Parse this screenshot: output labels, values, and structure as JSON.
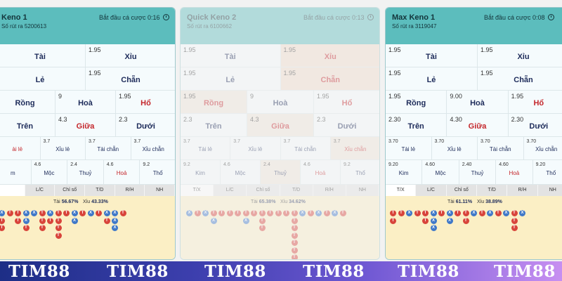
{
  "panels": [
    {
      "name": "Keno 1",
      "draw": "Số rút ra 5200613",
      "countdown": "Bắt đầu cá cược 0:16",
      "rows": [
        [
          {
            "odds": "",
            "label": "Tài"
          },
          {
            "odds": "1.95",
            "label": "Xỉu"
          }
        ],
        [
          {
            "odds": "",
            "label": "Lẻ"
          },
          {
            "odds": "1.95",
            "label": "Chẵn"
          }
        ],
        [
          {
            "odds": "",
            "label": "Rồng"
          },
          {
            "odds": "9",
            "label": "Hoà"
          },
          {
            "odds": "1.95",
            "label": "Hổ"
          }
        ],
        [
          {
            "odds": "",
            "label": "Trên"
          },
          {
            "odds": "4.3",
            "label": "Giữa"
          },
          {
            "odds": "2.3",
            "label": "Dưới"
          }
        ],
        [
          {
            "odds": "",
            "label": "ài lẻ"
          },
          {
            "odds": "3.7",
            "label": "Xỉu lẻ"
          },
          {
            "odds": "3.7",
            "label": "Tài chẵn"
          },
          {
            "odds": "3.7",
            "label": "Xỉu chẵn"
          }
        ],
        [
          {
            "odds": "",
            "label": "m"
          },
          {
            "odds": "4.6",
            "label": "Mộc"
          },
          {
            "odds": "2.4",
            "label": "Thuỷ"
          },
          {
            "odds": "4.6",
            "label": "Hoả"
          },
          {
            "odds": "9.2",
            "label": "Thổ"
          }
        ]
      ],
      "tabs": [
        "",
        "L/C",
        "Chỉ số",
        "T/D",
        "R/H",
        "NH"
      ],
      "tai_label": "Tài",
      "tai_pct": "56.67%",
      "xiu_label": "Xỉu",
      "xiu_pct": "43.33%",
      "beads": [
        [
          "X",
          "T",
          "T"
        ],
        [
          "T"
        ],
        [
          "T",
          "T"
        ],
        [
          "X",
          "X",
          "T"
        ],
        [
          "X"
        ],
        [
          "T",
          "T",
          "T"
        ],
        [
          "X",
          "T"
        ],
        [
          "T",
          "T",
          "T",
          "T"
        ],
        [
          "T"
        ],
        [
          "X",
          "X"
        ],
        [
          "T"
        ],
        [
          "X"
        ],
        [
          "T"
        ],
        [
          "X",
          "T"
        ],
        [
          "X",
          "X",
          "X"
        ],
        [
          "T"
        ]
      ]
    },
    {
      "name": "Quick Keno 2",
      "draw": "Số rút ra 6100662",
      "countdown": "Bắt đầu cá cược 0:13",
      "rows": [
        [
          {
            "odds": "1.95",
            "label": "Tài"
          },
          {
            "odds": "1.95",
            "label": "Xỉu"
          }
        ],
        [
          {
            "odds": "1.95",
            "label": "Lẻ"
          },
          {
            "odds": "1.95",
            "label": "Chẵn"
          }
        ],
        [
          {
            "odds": "1.95",
            "label": "Rồng"
          },
          {
            "odds": "9",
            "label": "Hoà"
          },
          {
            "odds": "1.95",
            "label": "Hổ"
          }
        ],
        [
          {
            "odds": "2.3",
            "label": "Trên"
          },
          {
            "odds": "4.3",
            "label": "Giữa"
          },
          {
            "odds": "2.3",
            "label": "Dưới"
          }
        ],
        [
          {
            "odds": "3.7",
            "label": "Tài lẻ"
          },
          {
            "odds": "3.7",
            "label": "Xỉu lẻ"
          },
          {
            "odds": "3.7",
            "label": "Tài chẵn"
          },
          {
            "odds": "3.7",
            "label": "Xỉu chẵn"
          }
        ],
        [
          {
            "odds": "9.2",
            "label": "Kim"
          },
          {
            "odds": "4.6",
            "label": "Mộc"
          },
          {
            "odds": "2.4",
            "label": "Thuỷ"
          },
          {
            "odds": "4.6",
            "label": "Hoả"
          },
          {
            "odds": "9.2",
            "label": "Thổ"
          }
        ]
      ],
      "tabs": [
        "T/X",
        "L/C",
        "Chỉ số",
        "T/D",
        "R/H",
        "NH"
      ],
      "tai_label": "Tài",
      "tai_pct": "65.38%",
      "xiu_label": "Xỉu",
      "xiu_pct": "34.62%",
      "beads": [
        [
          "X"
        ],
        [
          "T"
        ],
        [
          "X"
        ],
        [
          "T",
          "X"
        ],
        [
          "T"
        ],
        [
          "T"
        ],
        [
          "T"
        ],
        [
          "T",
          "X"
        ],
        [
          "T"
        ],
        [
          "T",
          "T",
          "T"
        ],
        [
          "T"
        ],
        [
          "T"
        ],
        [
          "T"
        ],
        [
          "T",
          "T",
          "T",
          "T",
          "T",
          "T",
          "T"
        ],
        [
          "X"
        ],
        [
          "T"
        ],
        [
          "X"
        ],
        [
          "T"
        ],
        [
          "X"
        ],
        [
          "T"
        ]
      ]
    },
    {
      "name": "Max Keno 1",
      "draw": "Số rút ra 3119047",
      "countdown": "Bắt đầu cá cược 0:08",
      "rows": [
        [
          {
            "odds": "1.95",
            "label": "Tài"
          },
          {
            "odds": "1.95",
            "label": "Xỉu"
          }
        ],
        [
          {
            "odds": "1.95",
            "label": "Lẻ"
          },
          {
            "odds": "1.95",
            "label": "Chẵn"
          }
        ],
        [
          {
            "odds": "1.95",
            "label": "Rồng"
          },
          {
            "odds": "9.00",
            "label": "Hoà"
          },
          {
            "odds": "1.95",
            "label": "Hổ"
          }
        ],
        [
          {
            "odds": "2.30",
            "label": "Trên"
          },
          {
            "odds": "4.30",
            "label": "Giữa"
          },
          {
            "odds": "2.30",
            "label": "Dưới"
          }
        ],
        [
          {
            "odds": "3.70",
            "label": "Tài lẻ"
          },
          {
            "odds": "3.70",
            "label": "Xỉu lẻ"
          },
          {
            "odds": "3.70",
            "label": "Tài chẵn"
          },
          {
            "odds": "3.70",
            "label": "Xỉu chẵn"
          }
        ],
        [
          {
            "odds": "9.20",
            "label": "Kim"
          },
          {
            "odds": "4.60",
            "label": "Mộc"
          },
          {
            "odds": "2.40",
            "label": "Thuỷ"
          },
          {
            "odds": "4.60",
            "label": "Hoả"
          },
          {
            "odds": "9.20",
            "label": "Thổ"
          }
        ]
      ],
      "tabs": [
        "T/X",
        "L/C",
        "Chỉ số",
        "T/D",
        "R/H",
        "NH"
      ],
      "tai_label": "Tài",
      "tai_pct": "61.11%",
      "xiu_label": "Xỉu",
      "xiu_pct": "38.89%",
      "beads": [
        [
          "T",
          "T"
        ],
        [
          "T"
        ],
        [
          "X"
        ],
        [
          "T"
        ],
        [
          "T",
          "T"
        ],
        [
          "X",
          "X",
          "X"
        ],
        [
          "T"
        ],
        [
          "X",
          "X"
        ],
        [
          "T"
        ],
        [
          "T",
          "T"
        ],
        [
          "X"
        ],
        [
          "T"
        ],
        [
          "X"
        ],
        [
          "T"
        ],
        [
          "X"
        ],
        [
          "T",
          "T",
          "T"
        ],
        [
          "X"
        ]
      ]
    }
  ],
  "brand_logos": [
    "TIM88",
    "TIM88",
    "TIM88",
    "TIM88",
    "TIM88",
    "TIM88"
  ],
  "colors": {
    "header": "#5cbdbd",
    "tai": "#d8443b",
    "xiu": "#3f78c8",
    "trend_bg": "#fbefc5",
    "brand_start": "#1d2e86",
    "brand_end": "#c78ff1"
  }
}
